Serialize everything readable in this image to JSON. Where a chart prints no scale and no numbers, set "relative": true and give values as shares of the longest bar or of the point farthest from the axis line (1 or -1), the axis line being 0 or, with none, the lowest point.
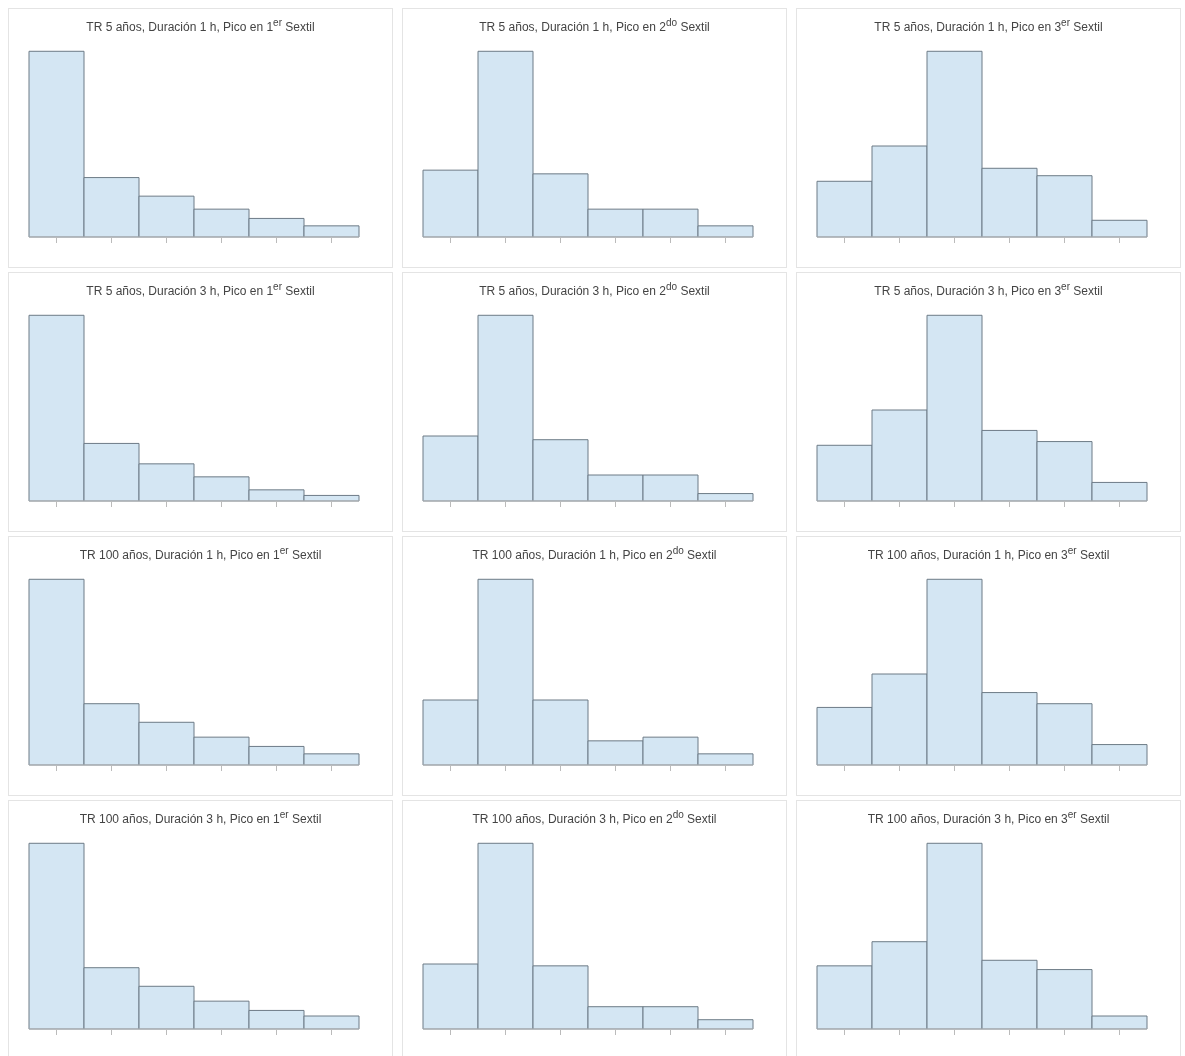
{
  "chart_data": [
    {
      "type": "bar",
      "title": "TR 5 años, Duración 1 h, Pico en 1$^{er}$ Sextil",
      "relative": true,
      "categories": [
        null,
        null,
        null,
        null,
        null,
        null
      ],
      "values": [
        1,
        0.32,
        0.22,
        0.15,
        0.1,
        0.06
      ],
      "color": "#d4e6f3"
    },
    {
      "type": "bar",
      "title": "TR 5 años, Duración 1 h, Pico en 2$^{do}$ Sextil",
      "relative": true,
      "categories": [
        null,
        null,
        null,
        null,
        null,
        null
      ],
      "values": [
        0.36,
        1,
        0.34,
        0.15,
        0.15,
        0.06
      ],
      "color": "#d4e6f3"
    },
    {
      "type": "bar",
      "title": "TR 5 años, Duración 1 h, Pico en 3$^{er}$ Sextil",
      "relative": true,
      "categories": [
        null,
        null,
        null,
        null,
        null,
        null
      ],
      "values": [
        0.3,
        0.49,
        1,
        0.37,
        0.33,
        0.09
      ],
      "color": "#d4e6f3"
    },
    {
      "type": "bar",
      "title": "TR 5 años, Duración 3 h, Pico en 1$^{er}$ Sextil",
      "relative": true,
      "categories": [
        null,
        null,
        null,
        null,
        null,
        null
      ],
      "values": [
        1,
        0.31,
        0.2,
        0.13,
        0.06,
        0.03
      ],
      "color": "#d4e6f3"
    },
    {
      "type": "bar",
      "title": "TR 5 años, Duración 3 h, Pico en 2$^{do}$ Sextil",
      "relative": true,
      "categories": [
        null,
        null,
        null,
        null,
        null,
        null
      ],
      "values": [
        0.35,
        1,
        0.33,
        0.14,
        0.14,
        0.04
      ],
      "color": "#d4e6f3"
    },
    {
      "type": "bar",
      "title": "TR 5 años, Duración 3 h, Pico en 3$^{er}$ Sextil",
      "relative": true,
      "categories": [
        null,
        null,
        null,
        null,
        null,
        null
      ],
      "values": [
        0.3,
        0.49,
        1,
        0.38,
        0.32,
        0.1
      ],
      "color": "#d4e6f3"
    },
    {
      "type": "bar",
      "title": "TR 100 años, Duración 1 h, Pico en 1$^{er}$ Sextil",
      "relative": true,
      "categories": [
        null,
        null,
        null,
        null,
        null,
        null
      ],
      "values": [
        1,
        0.33,
        0.23,
        0.15,
        0.1,
        0.06
      ],
      "color": "#d4e6f3"
    },
    {
      "type": "bar",
      "title": "TR 100 años, Duración 1 h, Pico en 2$^{do}$ Sextil",
      "relative": true,
      "categories": [
        null,
        null,
        null,
        null,
        null,
        null
      ],
      "values": [
        0.35,
        1,
        0.35,
        0.13,
        0.15,
        0.06
      ],
      "color": "#d4e6f3"
    },
    {
      "type": "bar",
      "title": "TR 100 años, Duración 1 h, Pico en 3$^{er}$ Sextil",
      "relative": true,
      "categories": [
        null,
        null,
        null,
        null,
        null,
        null
      ],
      "values": [
        0.31,
        0.49,
        1,
        0.39,
        0.33,
        0.11
      ],
      "color": "#d4e6f3"
    },
    {
      "type": "bar",
      "title": "TR 100 años, Duración 3 h, Pico en 1$^{er}$ Sextil",
      "relative": true,
      "categories": [
        null,
        null,
        null,
        null,
        null,
        null
      ],
      "values": [
        1,
        0.33,
        0.23,
        0.15,
        0.1,
        0.07
      ],
      "color": "#d4e6f3"
    },
    {
      "type": "bar",
      "title": "TR 100 años, Duración 3 h, Pico en 2$^{do}$ Sextil",
      "relative": true,
      "categories": [
        null,
        null,
        null,
        null,
        null,
        null
      ],
      "values": [
        0.35,
        1,
        0.34,
        0.12,
        0.12,
        0.05
      ],
      "color": "#d4e6f3"
    },
    {
      "type": "bar",
      "title": "TR 100 años, Duración 3 h, Pico en 3$^{er}$ Sextil",
      "relative": true,
      "categories": [
        null,
        null,
        null,
        null,
        null,
        null
      ],
      "values": [
        0.34,
        0.47,
        1,
        0.37,
        0.32,
        0.07
      ],
      "color": "#d4e6f3"
    }
  ]
}
